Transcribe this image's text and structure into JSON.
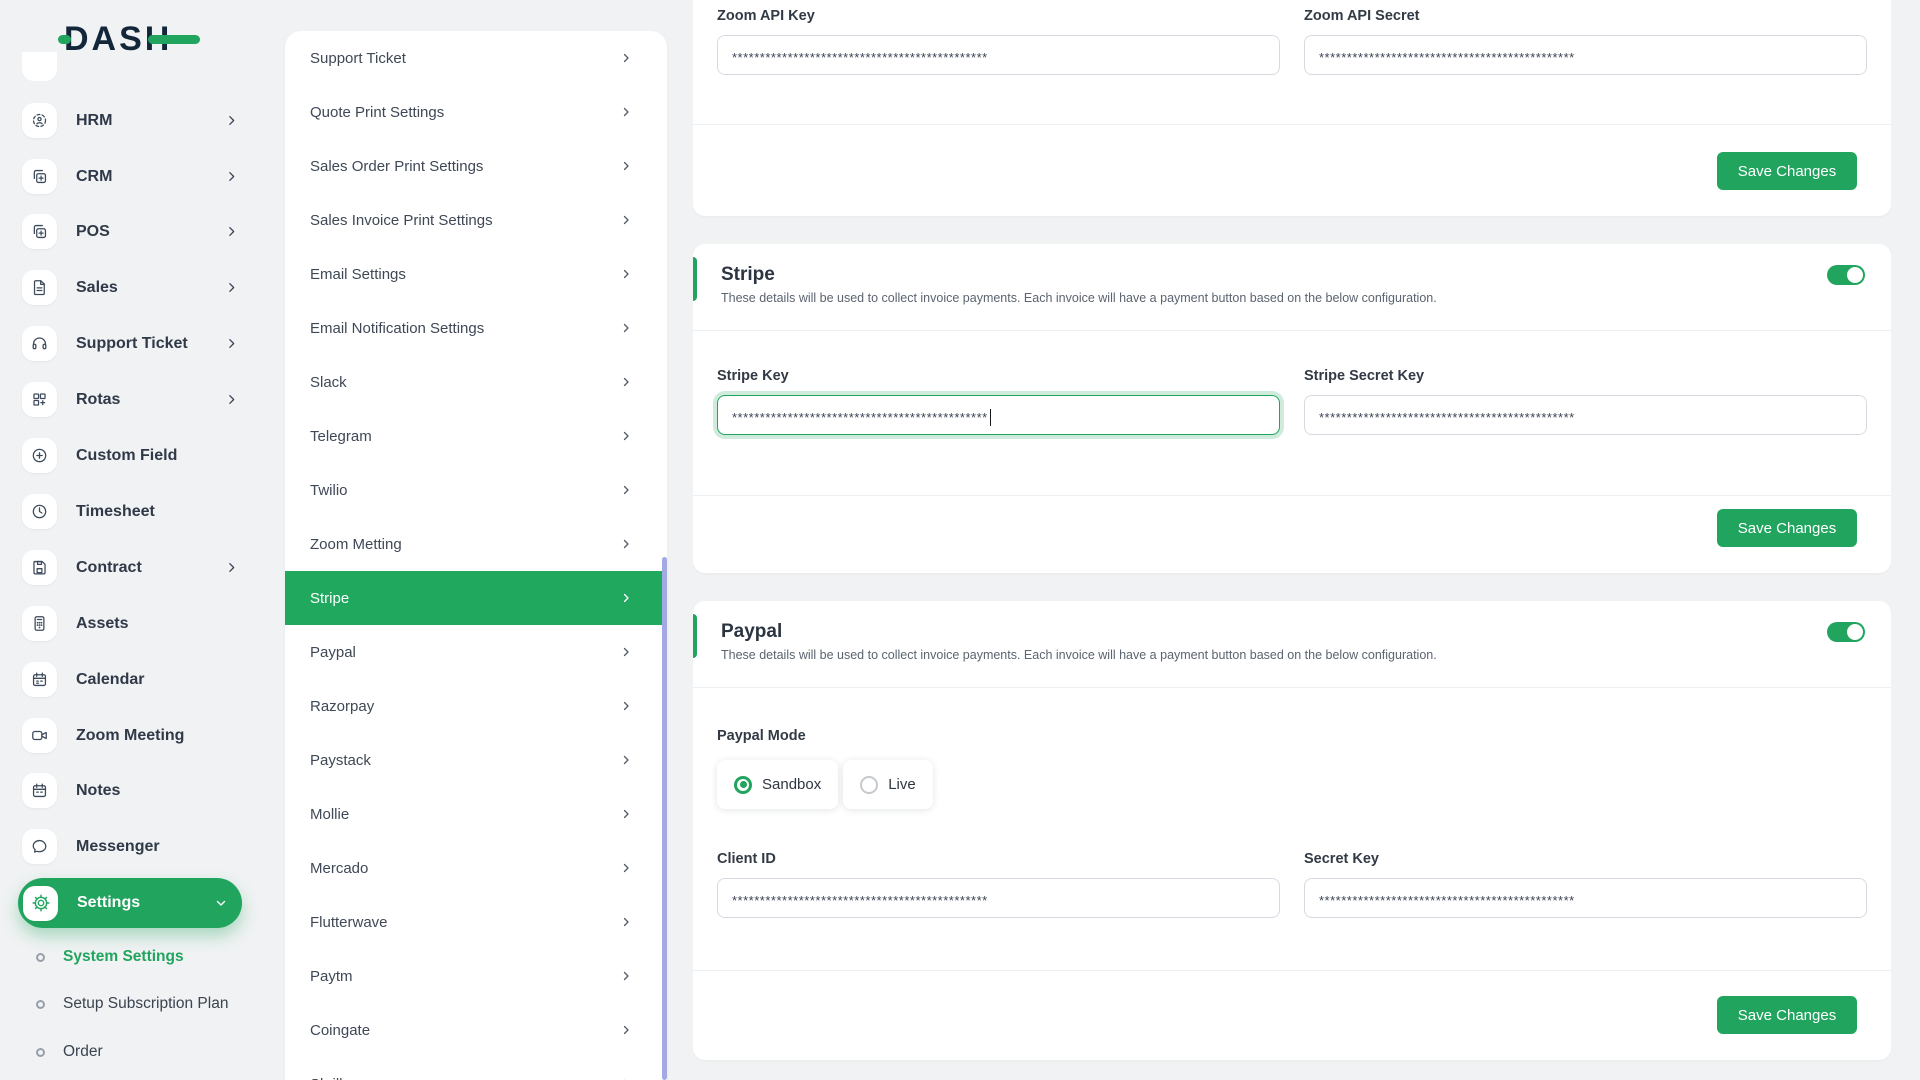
{
  "brand": {
    "name": "DASH"
  },
  "colors": {
    "primary_green": "#21a55e",
    "text_dark": "#2f3948",
    "panel_bg": "#ffffff",
    "page_bg": "#f0f2f3",
    "scrollbar": "#a3aae3"
  },
  "sidebar": {
    "items": [
      {
        "label": "HRM",
        "icon": "hrm-icon",
        "icon_ref": "#i-hrm",
        "children": true
      },
      {
        "label": "CRM",
        "icon": "crm-icon",
        "icon_ref": "#i-crm",
        "children": true
      },
      {
        "label": "POS",
        "icon": "pos-icon",
        "icon_ref": "#i-pos",
        "children": true
      },
      {
        "label": "Sales",
        "icon": "sales-icon",
        "icon_ref": "#i-sales",
        "children": true
      },
      {
        "label": "Support Ticket",
        "icon": "support-ticket-icon",
        "icon_ref": "#i-support",
        "children": true
      },
      {
        "label": "Rotas",
        "icon": "rotas-icon",
        "icon_ref": "#i-rotas",
        "children": true
      },
      {
        "label": "Custom Field",
        "icon": "custom-field-icon",
        "icon_ref": "#i-custom",
        "children": false
      },
      {
        "label": "Timesheet",
        "icon": "timesheet-icon",
        "icon_ref": "#i-time",
        "children": false
      },
      {
        "label": "Contract",
        "icon": "contract-icon",
        "icon_ref": "#i-contract",
        "children": true
      },
      {
        "label": "Assets",
        "icon": "assets-icon",
        "icon_ref": "#i-assets",
        "children": false
      },
      {
        "label": "Calendar",
        "icon": "calendar-icon",
        "icon_ref": "#i-cal",
        "children": false
      },
      {
        "label": "Zoom Meeting",
        "icon": "zoom-meeting-icon",
        "icon_ref": "#i-video",
        "children": false
      },
      {
        "label": "Notes",
        "icon": "notes-icon",
        "icon_ref": "#i-notes",
        "children": false
      },
      {
        "label": "Messenger",
        "icon": "messenger-icon",
        "icon_ref": "#i-chat",
        "children": false
      }
    ],
    "settings": {
      "label": "Settings"
    },
    "sub_items": [
      {
        "label": "System Settings",
        "active": true
      },
      {
        "label": "Setup Subscription Plan",
        "active": false
      },
      {
        "label": "Order",
        "active": false
      }
    ]
  },
  "settings_nav": {
    "items": [
      {
        "label": "Support Ticket",
        "selected": false
      },
      {
        "label": "Quote Print Settings",
        "selected": false
      },
      {
        "label": "Sales Order Print Settings",
        "selected": false
      },
      {
        "label": "Sales Invoice Print Settings",
        "selected": false
      },
      {
        "label": "Email Settings",
        "selected": false
      },
      {
        "label": "Email Notification Settings",
        "selected": false
      },
      {
        "label": "Slack",
        "selected": false
      },
      {
        "label": "Telegram",
        "selected": false
      },
      {
        "label": "Twilio",
        "selected": false
      },
      {
        "label": "Zoom Metting",
        "selected": false
      },
      {
        "label": "Stripe",
        "selected": true
      },
      {
        "label": "Paypal",
        "selected": false
      },
      {
        "label": "Razorpay",
        "selected": false
      },
      {
        "label": "Paystack",
        "selected": false
      },
      {
        "label": "Mollie",
        "selected": false
      },
      {
        "label": "Mercado",
        "selected": false
      },
      {
        "label": "Flutterwave",
        "selected": false
      },
      {
        "label": "Paytm",
        "selected": false
      },
      {
        "label": "Coingate",
        "selected": false
      },
      {
        "label": "Skrill",
        "selected": false
      }
    ]
  },
  "cards": {
    "zoom": {
      "fields": [
        {
          "label": "Zoom API Key",
          "value": "**********************************************"
        },
        {
          "label": "Zoom API Secret",
          "value": "**********************************************"
        }
      ],
      "save_label": "Save Changes"
    },
    "stripe": {
      "title": "Stripe",
      "description": "These details will be used to collect invoice payments. Each invoice will have a payment button based on the below configuration.",
      "enabled": true,
      "fields": [
        {
          "label": "Stripe Key",
          "value": "**********************************************",
          "focused": true
        },
        {
          "label": "Stripe Secret Key",
          "value": "**********************************************",
          "focused": false
        }
      ],
      "save_label": "Save Changes"
    },
    "paypal": {
      "title": "Paypal",
      "description": "These details will be used to collect invoice payments. Each invoice will have a payment button based on the below configuration.",
      "enabled": true,
      "mode_label": "Paypal Mode",
      "modes": [
        {
          "label": "Sandbox",
          "selected": true
        },
        {
          "label": "Live",
          "selected": false
        }
      ],
      "fields": [
        {
          "label": "Client ID",
          "value": "**********************************************"
        },
        {
          "label": "Secret Key",
          "value": "**********************************************"
        }
      ],
      "save_label": "Save Changes"
    }
  }
}
